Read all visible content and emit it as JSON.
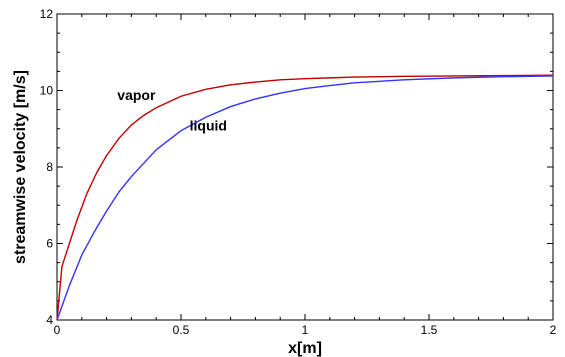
{
  "chart_data": {
    "type": "line",
    "xlabel": "x[m]",
    "ylabel": "streamwise velocity [m/s]",
    "xlim": [
      0,
      2
    ],
    "ylim": [
      4,
      12
    ],
    "x_ticks": [
      0,
      0.5,
      1,
      1.5,
      2
    ],
    "x_tick_labels": [
      "0",
      "0.5",
      "1",
      "1.5",
      "2"
    ],
    "y_ticks": [
      4,
      6,
      8,
      10,
      12
    ],
    "y_tick_labels": [
      "4",
      "6",
      "8",
      "10",
      "12"
    ],
    "grid": false,
    "legend": "none",
    "series": [
      {
        "name": "vapor",
        "color": "#c00000",
        "x": [
          0,
          0.02,
          0.05,
          0.08,
          0.12,
          0.16,
          0.2,
          0.25,
          0.3,
          0.35,
          0.4,
          0.5,
          0.6,
          0.7,
          0.8,
          0.9,
          1.0,
          1.1,
          1.2,
          1.4,
          1.6,
          1.8,
          2.0
        ],
        "values": [
          4.0,
          5.4,
          6.0,
          6.6,
          7.3,
          7.85,
          8.3,
          8.75,
          9.1,
          9.35,
          9.55,
          9.85,
          10.03,
          10.15,
          10.22,
          10.28,
          10.31,
          10.33,
          10.35,
          10.37,
          10.38,
          10.39,
          10.4
        ]
      },
      {
        "name": "liquid",
        "color": "#3333ff",
        "x": [
          0,
          0.05,
          0.1,
          0.15,
          0.2,
          0.25,
          0.3,
          0.4,
          0.5,
          0.6,
          0.7,
          0.8,
          0.9,
          1.0,
          1.1,
          1.2,
          1.4,
          1.6,
          1.8,
          2.0
        ],
        "values": [
          4.0,
          4.9,
          5.7,
          6.3,
          6.85,
          7.35,
          7.75,
          8.45,
          8.95,
          9.3,
          9.58,
          9.78,
          9.93,
          10.05,
          10.13,
          10.2,
          10.28,
          10.33,
          10.36,
          10.38
        ]
      }
    ],
    "annotations": [
      {
        "text": "vapor",
        "x": 0.32,
        "y": 9.75
      },
      {
        "text": "liquid",
        "x": 0.61,
        "y": 8.95
      }
    ]
  }
}
